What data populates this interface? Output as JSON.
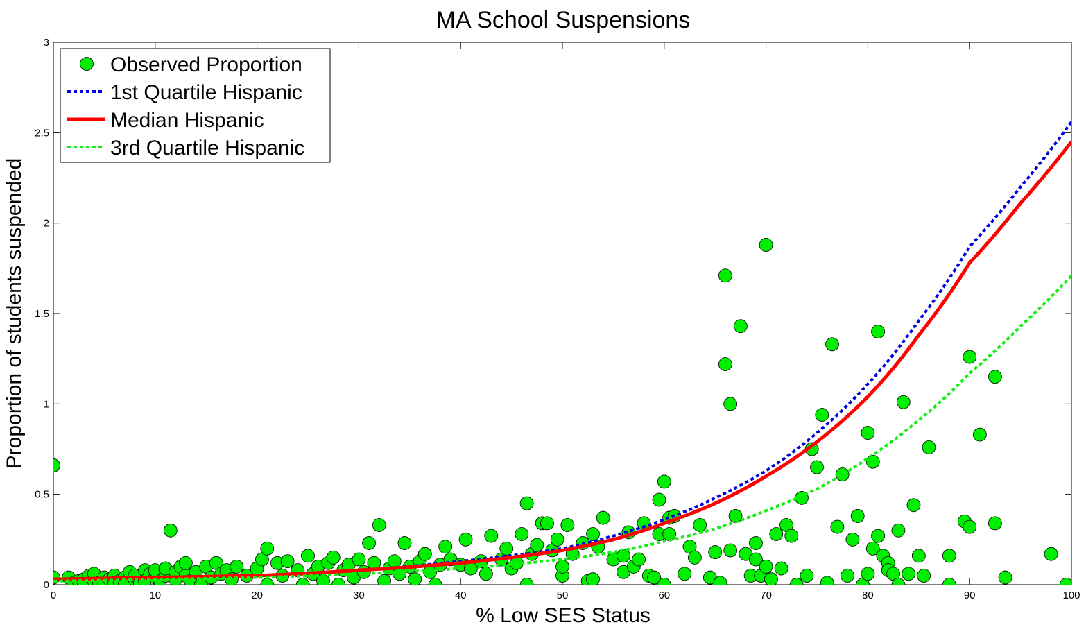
{
  "chart_data": {
    "type": "scatter",
    "title": "MA School Suspensions",
    "xlabel": "% Low SES Status",
    "ylabel": "Proportion of students suspended",
    "xlim": [
      0,
      100
    ],
    "ylim": [
      0,
      3
    ],
    "xticks": [
      0,
      10,
      20,
      30,
      40,
      50,
      60,
      70,
      80,
      90,
      100
    ],
    "yticks": [
      0,
      0.5,
      1,
      1.5,
      2,
      2.5,
      3
    ],
    "xtick_labels": [
      "0",
      "10",
      "20",
      "30",
      "40",
      "50",
      "60",
      "70",
      "80",
      "90",
      "100"
    ],
    "ytick_labels": [
      "0",
      "0.5",
      "1",
      "1.5",
      "2",
      "2.5",
      "3"
    ],
    "grid": false,
    "legend_position": "top-left",
    "legend": [
      {
        "label": "Observed Proportion",
        "kind": "marker",
        "color": "#00ee00",
        "edge": "#000000"
      },
      {
        "label": "1st Quartile Hispanic",
        "kind": "dotted",
        "color": "#0000dd"
      },
      {
        "label": "Median Hispanic",
        "kind": "solid",
        "color": "#ff0000"
      },
      {
        "label": "3rd Quartile Hispanic",
        "kind": "dotted",
        "color": "#11ee11"
      }
    ],
    "series": [
      {
        "name": "Observed Proportion",
        "kind": "scatter",
        "color": "#00ee00",
        "points": [
          [
            0.0,
            0.66
          ],
          [
            0.0,
            0.04
          ],
          [
            1.5,
            0.04
          ],
          [
            2,
            0.01
          ],
          [
            2.5,
            0.02
          ],
          [
            3,
            0.03
          ],
          [
            3,
            0.0
          ],
          [
            3.5,
            0.05
          ],
          [
            4,
            0.02
          ],
          [
            4,
            0.06
          ],
          [
            4.5,
            0.01
          ],
          [
            5,
            0.04
          ],
          [
            5,
            0.0
          ],
          [
            5.5,
            0.03
          ],
          [
            6,
            0.05
          ],
          [
            6,
            0.01
          ],
          [
            6.5,
            0.02
          ],
          [
            7,
            0.04
          ],
          [
            7,
            0.0
          ],
          [
            7.5,
            0.07
          ],
          [
            8,
            0.03
          ],
          [
            8,
            0.05
          ],
          [
            8.5,
            0.01
          ],
          [
            9,
            0.08
          ],
          [
            9,
            0.02
          ],
          [
            9.5,
            0.06
          ],
          [
            10,
            0.04
          ],
          [
            10,
            0.08
          ],
          [
            10.5,
            0.02
          ],
          [
            11,
            0.05
          ],
          [
            11,
            0.09
          ],
          [
            11.5,
            0.3
          ],
          [
            12,
            0.03
          ],
          [
            12,
            0.07
          ],
          [
            12.5,
            0.1
          ],
          [
            13,
            0.05
          ],
          [
            13,
            0.12
          ],
          [
            13.5,
            0.02
          ],
          [
            14,
            0.07
          ],
          [
            14.5,
            0.0
          ],
          [
            15,
            0.1
          ],
          [
            15.5,
            0.04
          ],
          [
            16,
            0.12
          ],
          [
            16.5,
            0.06
          ],
          [
            17,
            0.08
          ],
          [
            17.5,
            0.03
          ],
          [
            18,
            0.1
          ],
          [
            19,
            0.05
          ],
          [
            20,
            0.09
          ],
          [
            20.5,
            0.14
          ],
          [
            21,
            0.2
          ],
          [
            21,
            0.0
          ],
          [
            22,
            0.12
          ],
          [
            22.5,
            0.05
          ],
          [
            23,
            0.13
          ],
          [
            24,
            0.08
          ],
          [
            24.5,
            0.0
          ],
          [
            25,
            0.16
          ],
          [
            25.5,
            0.06
          ],
          [
            26,
            0.1
          ],
          [
            26.5,
            0.02
          ],
          [
            27,
            0.12
          ],
          [
            27.5,
            0.15
          ],
          [
            28,
            0.0
          ],
          [
            28.5,
            0.08
          ],
          [
            29,
            0.11
          ],
          [
            29.5,
            0.04
          ],
          [
            30,
            0.14
          ],
          [
            30.5,
            0.07
          ],
          [
            31,
            0.23
          ],
          [
            31.5,
            0.12
          ],
          [
            32,
            0.33
          ],
          [
            32.5,
            0.02
          ],
          [
            33,
            0.09
          ],
          [
            33.5,
            0.13
          ],
          [
            34,
            0.06
          ],
          [
            34.5,
            0.23
          ],
          [
            35,
            0.1
          ],
          [
            35.5,
            0.03
          ],
          [
            36,
            0.13
          ],
          [
            36.5,
            0.17
          ],
          [
            37,
            0.07
          ],
          [
            37.5,
            0.0
          ],
          [
            38,
            0.11
          ],
          [
            38.5,
            0.21
          ],
          [
            39,
            0.14
          ],
          [
            40,
            0.11
          ],
          [
            40.5,
            0.25
          ],
          [
            41,
            0.09
          ],
          [
            42,
            0.13
          ],
          [
            42.5,
            0.06
          ],
          [
            43,
            0.27
          ],
          [
            44,
            0.14
          ],
          [
            44.5,
            0.2
          ],
          [
            45,
            0.09
          ],
          [
            45.5,
            0.12
          ],
          [
            46,
            0.28
          ],
          [
            46.5,
            0.45
          ],
          [
            46.5,
            0.0
          ],
          [
            47,
            0.17
          ],
          [
            47.5,
            0.22
          ],
          [
            48,
            0.34
          ],
          [
            48.5,
            0.34
          ],
          [
            49,
            0.19
          ],
          [
            49.5,
            0.25
          ],
          [
            50,
            0.05
          ],
          [
            50,
            0.1
          ],
          [
            50.5,
            0.33
          ],
          [
            51,
            0.17
          ],
          [
            52,
            0.23
          ],
          [
            52.5,
            0.02
          ],
          [
            53,
            0.03
          ],
          [
            53.5,
            0.21
          ],
          [
            53,
            0.28
          ],
          [
            54,
            0.37
          ],
          [
            55,
            0.14
          ],
          [
            56,
            0.16
          ],
          [
            56,
            0.07
          ],
          [
            56.5,
            0.29
          ],
          [
            57,
            0.1
          ],
          [
            57.5,
            0.14
          ],
          [
            58,
            0.34
          ],
          [
            58.5,
            0.05
          ],
          [
            59,
            0.04
          ],
          [
            59.5,
            0.28
          ],
          [
            59.5,
            0.47
          ],
          [
            60,
            0.57
          ],
          [
            60,
            0.0
          ],
          [
            60.5,
            0.28
          ],
          [
            60.5,
            0.37
          ],
          [
            61,
            0.38
          ],
          [
            62,
            0.06
          ],
          [
            62.5,
            0.21
          ],
          [
            63,
            0.15
          ],
          [
            63.5,
            0.33
          ],
          [
            64.5,
            0.04
          ],
          [
            65,
            0.18
          ],
          [
            65.5,
            0.01
          ],
          [
            66,
            1.71
          ],
          [
            66,
            1.22
          ],
          [
            66.5,
            1.0
          ],
          [
            66.5,
            0.19
          ],
          [
            67,
            0.38
          ],
          [
            67.5,
            1.43
          ],
          [
            68,
            0.17
          ],
          [
            68.5,
            0.05
          ],
          [
            69,
            0.14
          ],
          [
            69,
            0.23
          ],
          [
            69.5,
            0.05
          ],
          [
            70,
            1.88
          ],
          [
            70,
            0.1
          ],
          [
            70.5,
            0.03
          ],
          [
            71,
            0.28
          ],
          [
            71.5,
            0.09
          ],
          [
            72,
            0.33
          ],
          [
            72.5,
            0.27
          ],
          [
            73,
            0.0
          ],
          [
            73.5,
            0.48
          ],
          [
            74,
            0.05
          ],
          [
            74.5,
            0.75
          ],
          [
            75,
            0.65
          ],
          [
            75.5,
            0.94
          ],
          [
            76,
            0.01
          ],
          [
            76.5,
            1.33
          ],
          [
            77,
            0.32
          ],
          [
            77.5,
            0.61
          ],
          [
            78,
            0.05
          ],
          [
            78.5,
            0.25
          ],
          [
            79,
            0.38
          ],
          [
            79.5,
            0.0
          ],
          [
            80,
            0.84
          ],
          [
            80,
            0.06
          ],
          [
            80.5,
            0.2
          ],
          [
            80.5,
            0.68
          ],
          [
            81,
            1.4
          ],
          [
            81,
            0.27
          ],
          [
            81.5,
            0.16
          ],
          [
            82,
            0.12
          ],
          [
            82,
            0.08
          ],
          [
            82.5,
            0.06
          ],
          [
            83,
            0.3
          ],
          [
            83,
            0.0
          ],
          [
            83.5,
            1.01
          ],
          [
            84,
            0.06
          ],
          [
            84.5,
            0.44
          ],
          [
            85,
            0.16
          ],
          [
            85.5,
            0.05
          ],
          [
            86,
            0.76
          ],
          [
            88,
            0.16
          ],
          [
            88,
            0.0
          ],
          [
            89.5,
            0.35
          ],
          [
            90,
            1.26
          ],
          [
            90,
            0.32
          ],
          [
            91,
            0.83
          ],
          [
            92.5,
            1.15
          ],
          [
            92.5,
            0.34
          ],
          [
            93.5,
            0.04
          ],
          [
            98,
            0.17
          ],
          [
            99.5,
            0.0
          ]
        ]
      },
      {
        "name": "1st Quartile Hispanic",
        "kind": "line",
        "style": "dotted",
        "color": "#0000dd",
        "x": [
          0,
          10,
          20,
          30,
          40,
          50,
          55,
          60,
          65,
          70,
          75,
          80,
          85,
          90,
          95,
          100
        ],
        "y": [
          0.03,
          0.04,
          0.05,
          0.08,
          0.13,
          0.2,
          0.27,
          0.36,
          0.48,
          0.63,
          0.84,
          1.11,
          1.46,
          1.87,
          2.2,
          2.56
        ]
      },
      {
        "name": "Median Hispanic",
        "kind": "line",
        "style": "solid",
        "color": "#ff0000",
        "x": [
          0,
          10,
          20,
          30,
          40,
          50,
          55,
          60,
          65,
          70,
          75,
          80,
          85,
          90,
          95,
          100
        ],
        "y": [
          0.03,
          0.04,
          0.05,
          0.08,
          0.12,
          0.19,
          0.25,
          0.34,
          0.45,
          0.6,
          0.79,
          1.04,
          1.38,
          1.78,
          2.11,
          2.45
        ]
      },
      {
        "name": "3rd Quartile Hispanic",
        "kind": "line",
        "style": "dotted",
        "color": "#11ee11",
        "x": [
          0,
          10,
          20,
          30,
          40,
          50,
          55,
          60,
          65,
          70,
          75,
          80,
          85,
          90,
          95,
          100
        ],
        "y": [
          0.02,
          0.03,
          0.04,
          0.06,
          0.09,
          0.14,
          0.18,
          0.24,
          0.31,
          0.41,
          0.53,
          0.7,
          0.91,
          1.17,
          1.43,
          1.71
        ]
      }
    ]
  }
}
